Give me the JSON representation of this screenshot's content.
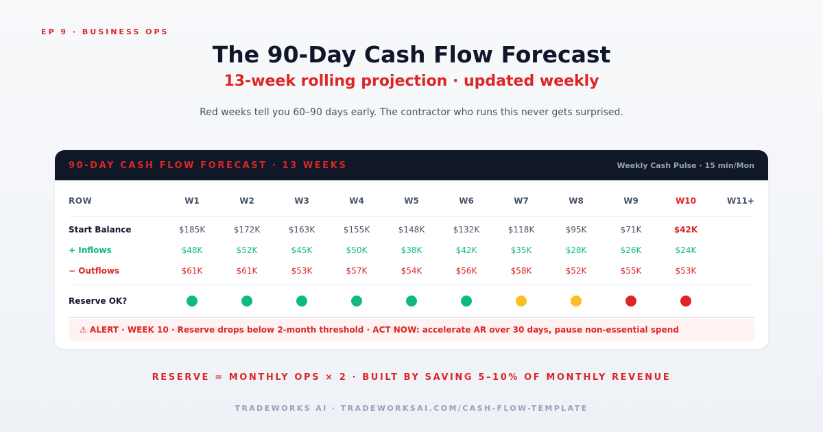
{
  "episode": "EP 9 · BUSINESS OPS",
  "title": "The 90-Day Cash Flow Forecast",
  "subtitle": "13-week rolling projection · updated weekly",
  "tagline": "Red weeks tell you 60–90 days early. The contractor who runs this never gets surprised.",
  "card": {
    "title": "90-DAY CASH FLOW FORECAST · 13 WEEKS",
    "meta": "Weekly Cash Pulse · 15 min/Mon"
  },
  "table": {
    "row_header": "ROW",
    "weeks": [
      "W1",
      "W2",
      "W3",
      "W4",
      "W5",
      "W6",
      "W7",
      "W8",
      "W9",
      "W10"
    ],
    "extra_week": "W11+",
    "start_label": "Start Balance",
    "start": [
      "$185K",
      "$172K",
      "$163K",
      "$155K",
      "$148K",
      "$132K",
      "$118K",
      "$95K",
      "$71K",
      "$42K"
    ],
    "inflows_label": "+ Inflows",
    "inflows": [
      "$48K",
      "$52K",
      "$45K",
      "$50K",
      "$38K",
      "$42K",
      "$35K",
      "$28K",
      "$26K",
      "$24K"
    ],
    "outflows_label": "− Outflows",
    "outflows": [
      "$61K",
      "$61K",
      "$53K",
      "$57K",
      "$54K",
      "$56K",
      "$58K",
      "$52K",
      "$55K",
      "$53K"
    ],
    "reserve_label": "Reserve OK?",
    "reserve_status": [
      "green",
      "green",
      "green",
      "green",
      "green",
      "green",
      "yellow",
      "yellow",
      "red",
      "red"
    ]
  },
  "colors": {
    "green": "#10b981",
    "yellow": "#fbbf24",
    "red": "#dc2626",
    "accent": "#dc2626",
    "header_bg": "#101828"
  },
  "alert": "⚠ ALERT · WEEK 10 · Reserve drops below 2-month threshold · ACT NOW: accelerate AR over 30 days, pause non-essential spend",
  "formula": "RESERVE = MONTHLY OPS × 2 · BUILT BY SAVING 5–10% OF MONTHLY REVENUE",
  "footer": "TRADEWORKS AI · TRADEWORKSAI.COM/CASH-FLOW-TEMPLATE"
}
